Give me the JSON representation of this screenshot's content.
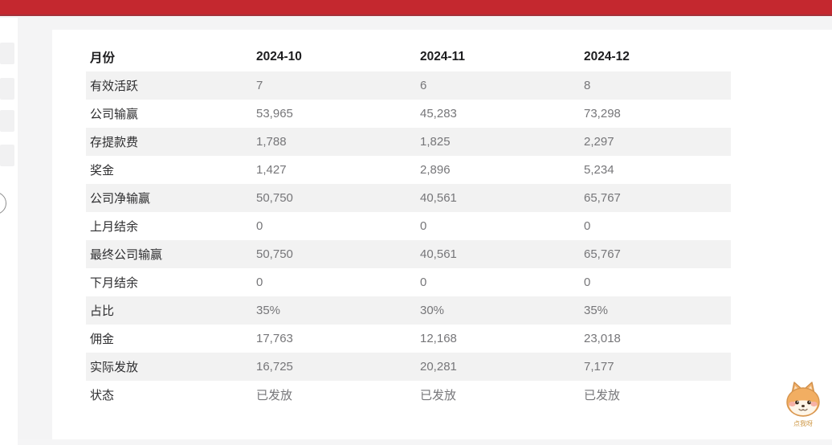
{
  "topbar": {
    "color": "#c4282f"
  },
  "table": {
    "columns": [
      "月份",
      "2024-10",
      "2024-11",
      "2024-12"
    ],
    "rows": [
      {
        "label": "有效活跃",
        "values": [
          "7",
          "6",
          "8"
        ]
      },
      {
        "label": "公司输赢",
        "values": [
          "53,965",
          "45,283",
          "73,298"
        ]
      },
      {
        "label": "存提款费",
        "values": [
          "1,788",
          "1,825",
          "2,297"
        ]
      },
      {
        "label": "奖金",
        "values": [
          "1,427",
          "2,896",
          "5,234"
        ]
      },
      {
        "label": "公司净输赢",
        "values": [
          "50,750",
          "40,561",
          "65,767"
        ]
      },
      {
        "label": "上月结余",
        "values": [
          "0",
          "0",
          "0"
        ]
      },
      {
        "label": "最终公司输赢",
        "values": [
          "50,750",
          "40,561",
          "65,767"
        ]
      },
      {
        "label": "下月结余",
        "values": [
          "0",
          "0",
          "0"
        ]
      },
      {
        "label": "占比",
        "values": [
          "35%",
          "30%",
          "35%"
        ]
      },
      {
        "label": "佣金",
        "values": [
          "17,763",
          "12,168",
          "23,018"
        ]
      },
      {
        "label": "实际发放",
        "values": [
          "16,725",
          "20,281",
          "7,177"
        ]
      },
      {
        "label": "状态",
        "values": [
          "已发放",
          "已发放",
          "已发放"
        ]
      }
    ]
  },
  "mascot": {
    "label": "点我呀"
  },
  "colors": {
    "topbar_red": "#c4282f",
    "topbar_edge": "#a4323a",
    "stripe_grey": "#f2f2f2",
    "page_bg": "#f4f4f5",
    "label_text": "#2d2d2f",
    "value_text": "#767679",
    "mascot_text": "#cf9a49"
  }
}
